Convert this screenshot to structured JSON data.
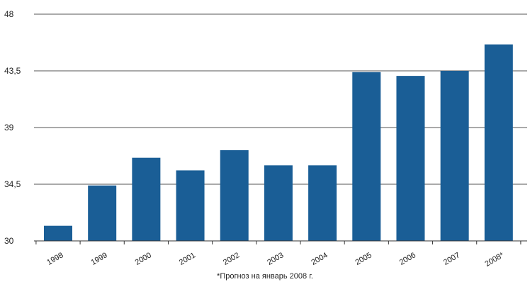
{
  "chart_data": {
    "type": "bar",
    "categories": [
      "1998",
      "1999",
      "2000",
      "2001",
      "2002",
      "2003",
      "2004",
      "2005",
      "2006",
      "2007",
      "2008*"
    ],
    "values": [
      31.2,
      34.4,
      36.6,
      35.6,
      37.2,
      36.0,
      36.0,
      43.4,
      43.1,
      43.5,
      45.6
    ],
    "ylim": [
      30,
      48
    ],
    "yticks": [
      "30",
      "34,5",
      "39",
      "43,5",
      "48"
    ],
    "ytick_values": [
      30,
      34.5,
      39,
      43.5,
      48
    ],
    "grid": true,
    "bar_color": "#1a5e96",
    "footnote": "*Прогноз на январь 2008 г."
  }
}
